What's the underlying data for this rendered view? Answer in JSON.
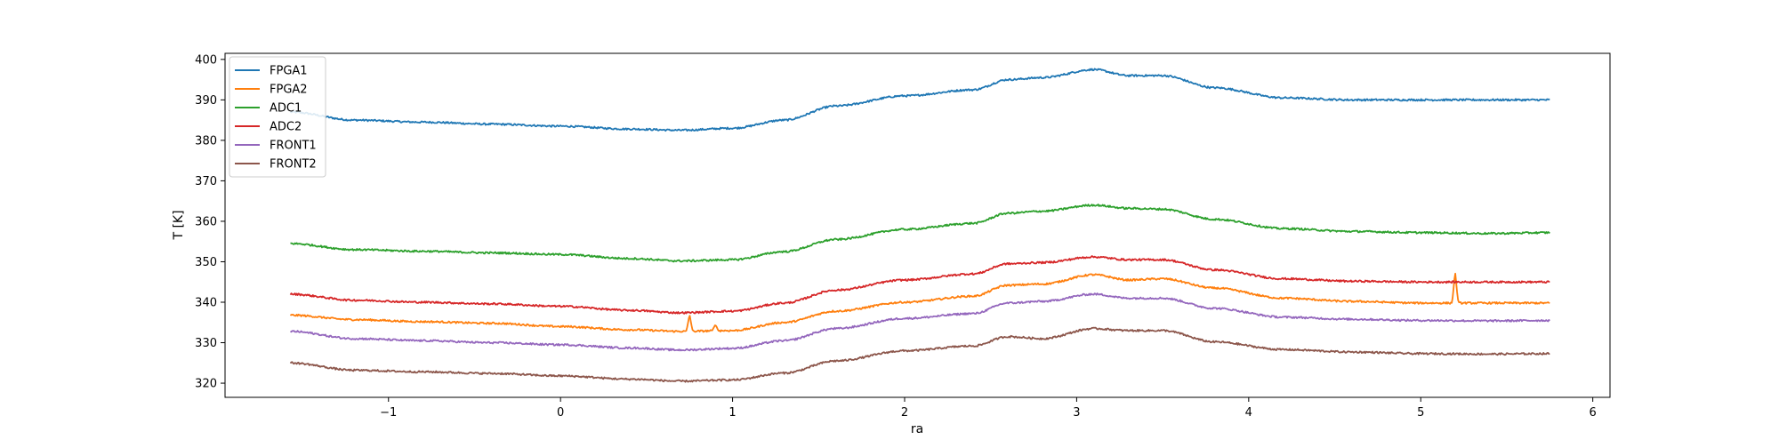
{
  "chart_data": {
    "type": "line",
    "title": "",
    "xlabel": "ra",
    "ylabel": "T [K]",
    "xlim": [
      -1.95,
      6.1
    ],
    "ylim": [
      316.5,
      401.5
    ],
    "xticks": [
      -1,
      0,
      1,
      2,
      3,
      4,
      5,
      6
    ],
    "yticks": [
      320,
      330,
      340,
      350,
      360,
      370,
      380,
      390,
      400
    ],
    "xtick_labels": [
      "−1",
      "0",
      "1",
      "2",
      "3",
      "4",
      "5",
      "6"
    ],
    "ytick_labels": [
      "320",
      "330",
      "340",
      "350",
      "360",
      "370",
      "380",
      "390",
      "400"
    ],
    "grid": false,
    "legend_position": "top-left",
    "x": [
      -1.57,
      -1.2,
      -0.8,
      -0.4,
      0,
      0.4,
      0.7,
      1.0,
      1.3,
      1.6,
      2.0,
      2.4,
      2.6,
      2.8,
      3.1,
      3.3,
      3.5,
      3.8,
      4.2,
      4.6,
      5.0,
      5.4,
      5.75
    ],
    "series": [
      {
        "name": "FPGA1",
        "color": "#1f77b4",
        "values": [
          387.0,
          385.0,
          384.5,
          384.0,
          383.5,
          382.8,
          382.5,
          383.0,
          385.0,
          388.5,
          391.0,
          392.5,
          395.0,
          395.5,
          397.5,
          396.0,
          396.0,
          393.0,
          390.5,
          390.0,
          390.0,
          390.0,
          390.0
        ],
        "spikes": []
      },
      {
        "name": "FPGA2",
        "color": "#ff7f0e",
        "values": [
          336.8,
          335.7,
          335.2,
          334.8,
          334.0,
          333.2,
          332.8,
          333.0,
          335.0,
          337.8,
          340.0,
          341.5,
          344.2,
          344.5,
          346.8,
          345.5,
          345.8,
          343.5,
          341.0,
          340.2,
          339.8,
          339.8,
          339.8
        ],
        "spikes": [
          {
            "x": 0.75,
            "value": 337.0
          },
          {
            "x": 0.9,
            "value": 334.5
          },
          {
            "x": 5.2,
            "value": 347.5
          }
        ]
      },
      {
        "name": "ADC1",
        "color": "#2ca02c",
        "values": [
          354.5,
          353.0,
          352.6,
          352.2,
          351.8,
          350.8,
          350.2,
          350.5,
          352.5,
          355.5,
          358.0,
          359.5,
          362.0,
          362.5,
          364.0,
          363.2,
          363.0,
          360.5,
          358.2,
          357.5,
          357.2,
          357.0,
          357.2
        ],
        "spikes": []
      },
      {
        "name": "ADC2",
        "color": "#d62728",
        "values": [
          342.0,
          340.5,
          340.0,
          339.6,
          339.0,
          338.0,
          337.4,
          337.8,
          339.8,
          343.0,
          345.5,
          347.0,
          349.5,
          349.8,
          351.2,
          350.5,
          350.5,
          348.0,
          345.8,
          345.2,
          345.0,
          345.0,
          345.0
        ],
        "spikes": []
      },
      {
        "name": "FRONT1",
        "color": "#9467bd",
        "values": [
          332.8,
          331.0,
          330.5,
          330.0,
          329.5,
          328.7,
          328.2,
          328.6,
          330.5,
          333.5,
          336.0,
          337.2,
          339.8,
          340.2,
          342.0,
          341.0,
          341.0,
          338.5,
          336.3,
          335.8,
          335.5,
          335.4,
          335.5
        ],
        "spikes": []
      },
      {
        "name": "FRONT2",
        "color": "#8c564b",
        "values": [
          325.0,
          323.2,
          322.8,
          322.4,
          321.8,
          321.0,
          320.5,
          320.8,
          322.5,
          325.5,
          328.0,
          329.2,
          331.5,
          331.0,
          333.5,
          333.0,
          333.0,
          330.2,
          328.3,
          327.7,
          327.3,
          327.2,
          327.3
        ],
        "spikes": []
      }
    ]
  }
}
